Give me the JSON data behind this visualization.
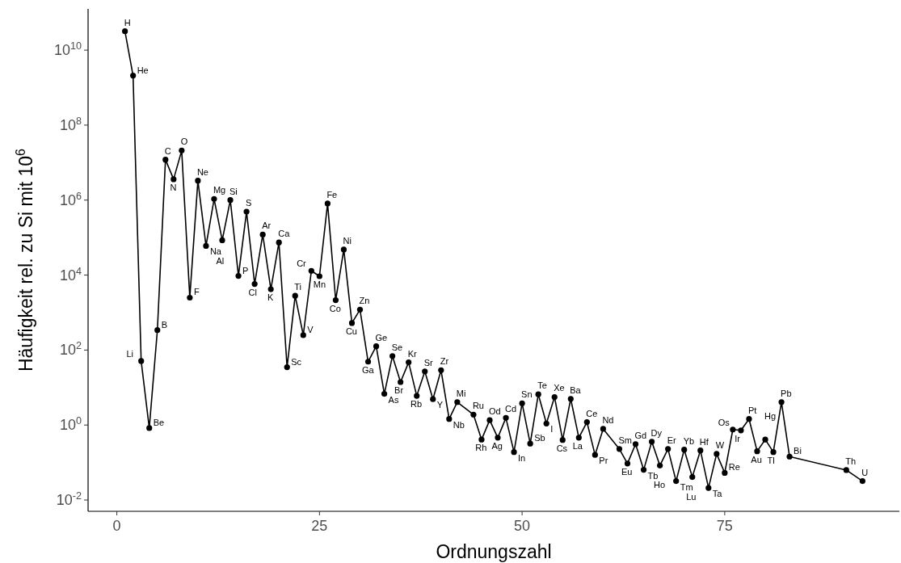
{
  "chart_data": {
    "type": "line",
    "xlabel": "Ordnungszahl",
    "ylabel": "Häufigkeit rel. zu Si mit 10$^{6}$",
    "log": "y",
    "grid": false,
    "marker": "circle",
    "xlim": [
      -3.55,
      96.55
    ],
    "xticks": [
      0,
      25,
      50,
      75
    ],
    "ylim": [
      0.005,
      126000000000.0
    ],
    "yticks": [
      {
        "value": 0.01,
        "label": "10$^{-2}$"
      },
      {
        "value": 1,
        "label": "10$^{0}$"
      },
      {
        "value": 100,
        "label": "10$^{2}$"
      },
      {
        "value": 10000,
        "label": "10$^{4}$"
      },
      {
        "value": 1000000,
        "label": "10$^{6}$"
      },
      {
        "value": 100000000,
        "label": "10$^{8}$"
      },
      {
        "value": 10000000000,
        "label": "10$^{10}$"
      }
    ],
    "x": [
      1,
      2,
      3,
      4,
      5,
      6,
      7,
      8,
      9,
      10,
      11,
      12,
      13,
      14,
      15,
      16,
      17,
      18,
      19,
      20,
      21,
      22,
      23,
      24,
      25,
      26,
      27,
      28,
      29,
      30,
      31,
      32,
      33,
      34,
      35,
      36,
      37,
      38,
      39,
      40,
      41,
      42,
      44,
      45,
      46,
      47,
      48,
      49,
      50,
      51,
      52,
      53,
      54,
      55,
      56,
      57,
      58,
      59,
      60,
      62,
      63,
      64,
      65,
      66,
      67,
      68,
      69,
      70,
      71,
      72,
      73,
      74,
      75,
      76,
      77,
      78,
      79,
      80,
      81,
      82,
      83,
      90,
      92
    ],
    "series": [
      {
        "color": "#000000",
        "values": [
          32000000000.0,
          2100000000.0,
          51,
          0.83,
          340,
          12000000.0,
          3600000.0,
          21000000.0,
          2500,
          3300000.0,
          60000,
          1070000.0,
          85000,
          1000000.0,
          9500,
          490000,
          5800,
          120000,
          4200,
          74000,
          35,
          2800,
          250,
          13000,
          9300,
          810000,
          2150,
          48000,
          525,
          1200,
          49,
          126,
          6.8,
          69,
          14,
          47,
          6.0,
          27,
          4.9,
          29,
          1.45,
          4.1,
          1.9,
          0.41,
          1.35,
          0.46,
          1.55,
          0.19,
          3.8,
          0.32,
          6.6,
          1.1,
          5.6,
          0.4,
          5.0,
          0.46,
          1.2,
          0.16,
          0.79,
          0.23,
          0.094,
          0.31,
          0.064,
          0.36,
          0.083,
          0.23,
          0.032,
          0.22,
          0.041,
          0.21,
          0.021,
          0.17,
          0.053,
          0.76,
          0.72,
          1.45,
          0.2,
          0.41,
          0.19,
          4.1,
          0.144,
          0.063,
          0.032
        ]
      }
    ],
    "annotations": [
      {
        "text": "H",
        "x": 1,
        "y": 32000000000.0
      },
      {
        "text": "He",
        "x": 2,
        "y": 2100000000.0
      },
      {
        "text": "Li",
        "x": 3,
        "y": 51
      },
      {
        "text": "Be",
        "x": 4,
        "y": 0.83
      },
      {
        "text": "B",
        "x": 5,
        "y": 340
      },
      {
        "text": "C",
        "x": 6,
        "y": 12000000.0
      },
      {
        "text": "N",
        "x": 7,
        "y": 3600000.0
      },
      {
        "text": "O",
        "x": 8,
        "y": 21000000.0
      },
      {
        "text": "F",
        "x": 9,
        "y": 2500
      },
      {
        "text": "Ne",
        "x": 10,
        "y": 3300000.0
      },
      {
        "text": "Na",
        "x": 11,
        "y": 60000
      },
      {
        "text": "Mg",
        "x": 12,
        "y": 1070000.0
      },
      {
        "text": "Al",
        "x": 13,
        "y": 85000
      },
      {
        "text": "Si",
        "x": 14,
        "y": 1000000.0
      },
      {
        "text": "P",
        "x": 15,
        "y": 9500
      },
      {
        "text": "S",
        "x": 16,
        "y": 490000
      },
      {
        "text": "Cl",
        "x": 17,
        "y": 5800
      },
      {
        "text": "Ar",
        "x": 18,
        "y": 120000
      },
      {
        "text": "K",
        "x": 19,
        "y": 4200
      },
      {
        "text": "Ca",
        "x": 20,
        "y": 74000
      },
      {
        "text": "Sc",
        "x": 21,
        "y": 35
      },
      {
        "text": "Ti",
        "x": 22,
        "y": 2800
      },
      {
        "text": "V",
        "x": 23,
        "y": 250
      },
      {
        "text": "Cr",
        "x": 24,
        "y": 13000
      },
      {
        "text": "Mn",
        "x": 25,
        "y": 9300
      },
      {
        "text": "Fe",
        "x": 26,
        "y": 810000
      },
      {
        "text": "Co",
        "x": 27,
        "y": 2150
      },
      {
        "text": "Ni",
        "x": 28,
        "y": 48000
      },
      {
        "text": "Cu",
        "x": 29,
        "y": 525
      },
      {
        "text": "Zn",
        "x": 30,
        "y": 1200
      },
      {
        "text": "Ga",
        "x": 31,
        "y": 49
      },
      {
        "text": "Ge",
        "x": 32,
        "y": 126
      },
      {
        "text": "As",
        "x": 33,
        "y": 6.8
      },
      {
        "text": "Se",
        "x": 34,
        "y": 69
      },
      {
        "text": "Br",
        "x": 35,
        "y": 14
      },
      {
        "text": "Kr",
        "x": 36,
        "y": 47
      },
      {
        "text": "Rb",
        "x": 37,
        "y": 6.0
      },
      {
        "text": "Sr",
        "x": 38,
        "y": 27
      },
      {
        "text": "Y",
        "x": 39,
        "y": 4.9
      },
      {
        "text": "Zr",
        "x": 40,
        "y": 29
      },
      {
        "text": "Nb",
        "x": 41,
        "y": 1.45
      },
      {
        "text": "Mi",
        "x": 42,
        "y": 4.1
      },
      {
        "text": "Ru",
        "x": 44,
        "y": 1.9
      },
      {
        "text": "Rh",
        "x": 45,
        "y": 0.41
      },
      {
        "text": "Od",
        "x": 46,
        "y": 1.35
      },
      {
        "text": "Ag",
        "x": 47,
        "y": 0.46
      },
      {
        "text": "Cd",
        "x": 48,
        "y": 1.55
      },
      {
        "text": "In",
        "x": 49,
        "y": 0.19
      },
      {
        "text": "Sn",
        "x": 50,
        "y": 3.8
      },
      {
        "text": "Sb",
        "x": 51,
        "y": 0.32
      },
      {
        "text": "Te",
        "x": 52,
        "y": 6.6
      },
      {
        "text": "I",
        "x": 53,
        "y": 1.1
      },
      {
        "text": "Xe",
        "x": 54,
        "y": 5.6
      },
      {
        "text": "Cs",
        "x": 55,
        "y": 0.4
      },
      {
        "text": "Ba",
        "x": 56,
        "y": 5.0
      },
      {
        "text": "La",
        "x": 57,
        "y": 0.46
      },
      {
        "text": "Ce",
        "x": 58,
        "y": 1.2
      },
      {
        "text": "Pr",
        "x": 59,
        "y": 0.16
      },
      {
        "text": "Nd",
        "x": 60,
        "y": 0.79
      },
      {
        "text": "Sm",
        "x": 62,
        "y": 0.23
      },
      {
        "text": "Eu",
        "x": 63,
        "y": 0.094
      },
      {
        "text": "Gd",
        "x": 64,
        "y": 0.31
      },
      {
        "text": "Tb",
        "x": 65,
        "y": 0.064
      },
      {
        "text": "Dy",
        "x": 66,
        "y": 0.36
      },
      {
        "text": "Ho",
        "x": 67,
        "y": 0.083
      },
      {
        "text": "Er",
        "x": 68,
        "y": 0.23
      },
      {
        "text": "Tm",
        "x": 69,
        "y": 0.032
      },
      {
        "text": "Yb",
        "x": 70,
        "y": 0.22
      },
      {
        "text": "Lu",
        "x": 71,
        "y": 0.041
      },
      {
        "text": "Hf",
        "x": 72,
        "y": 0.21
      },
      {
        "text": "Ta",
        "x": 73,
        "y": 0.021
      },
      {
        "text": "W",
        "x": 74,
        "y": 0.17
      },
      {
        "text": "Re",
        "x": 75,
        "y": 0.053
      },
      {
        "text": "Os",
        "x": 76,
        "y": 0.76
      },
      {
        "text": "Ir",
        "x": 77,
        "y": 0.72
      },
      {
        "text": "Pt",
        "x": 78,
        "y": 1.45
      },
      {
        "text": "Au",
        "x": 79,
        "y": 0.2
      },
      {
        "text": "Hg",
        "x": 80,
        "y": 0.41
      },
      {
        "text": "Tl",
        "x": 81,
        "y": 0.19
      },
      {
        "text": "Pb",
        "x": 82,
        "y": 4.1
      },
      {
        "text": "Bi",
        "x": 83,
        "y": 0.144
      },
      {
        "text": "Th",
        "x": 90,
        "y": 0.063
      },
      {
        "text": "U",
        "x": 92,
        "y": 0.032
      }
    ]
  }
}
